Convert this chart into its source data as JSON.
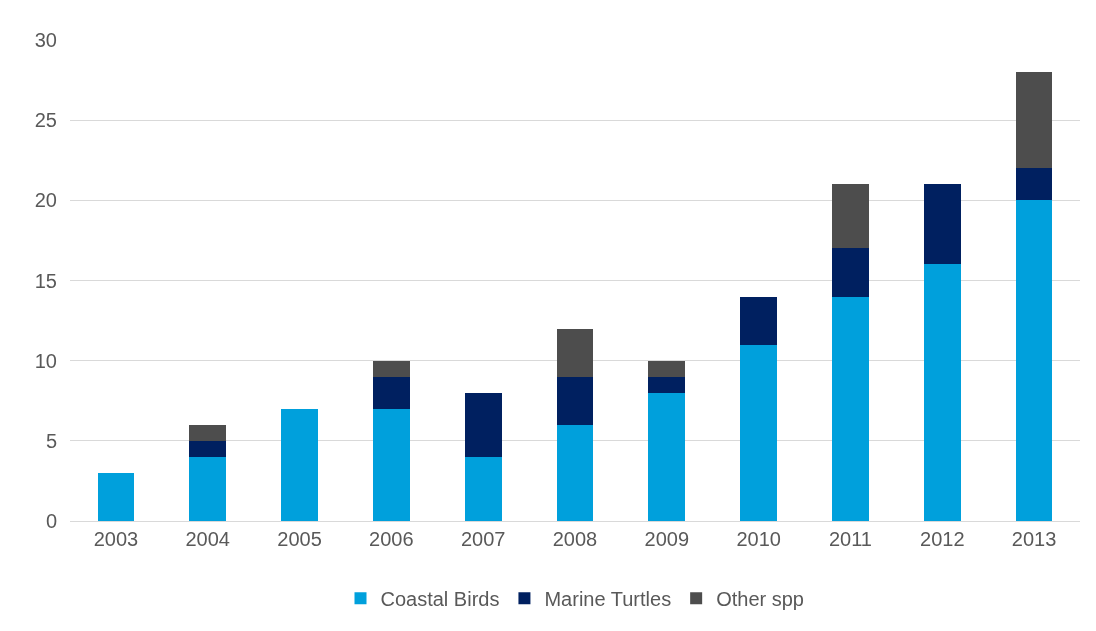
{
  "chart_data": {
    "type": "bar",
    "stacked": true,
    "categories": [
      "2003",
      "2004",
      "2005",
      "2006",
      "2007",
      "2008",
      "2009",
      "2010",
      "2011",
      "2012",
      "2013"
    ],
    "series": [
      {
        "name": "Coastal Birds",
        "color": "#00a0dc",
        "values": [
          3,
          4,
          7,
          7,
          4,
          6,
          8,
          11,
          14,
          16,
          20
        ]
      },
      {
        "name": "Marine Turtles",
        "color": "#002060",
        "values": [
          0,
          1,
          0,
          2,
          4,
          3,
          1,
          3,
          3,
          5,
          2
        ]
      },
      {
        "name": "Other spp",
        "color": "#4d4d4d",
        "values": [
          0,
          1,
          0,
          1,
          0,
          3,
          1,
          0,
          4,
          0,
          6
        ]
      }
    ],
    "ylim": [
      0,
      30
    ],
    "yticks": [
      0,
      5,
      10,
      15,
      20,
      25,
      30
    ],
    "grid": "y",
    "legend": "bottom"
  }
}
